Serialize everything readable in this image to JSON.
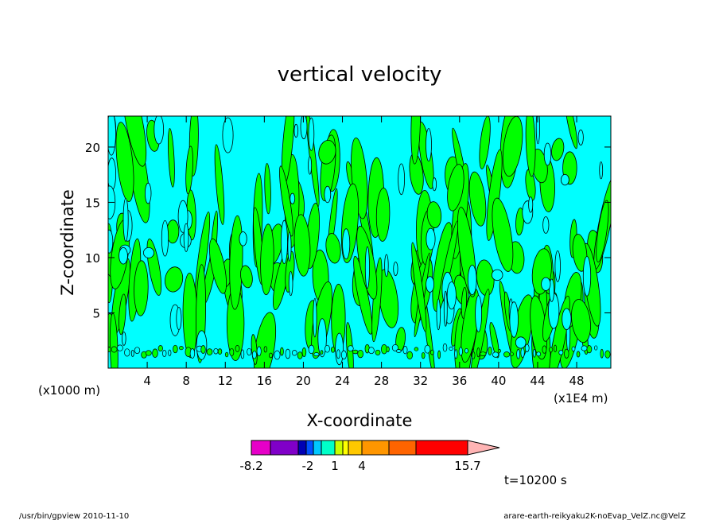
{
  "chart_data": {
    "type": "heatmap",
    "title": "vertical velocity",
    "xlabel": "X-coordinate",
    "ylabel": "Z-coordinate",
    "x_unit": "(x1E4 m)",
    "y_unit": "(x1000 m)",
    "xlim": [
      0,
      51.5
    ],
    "ylim": [
      0,
      22.8
    ],
    "x_ticks": [
      "4",
      "8",
      "12",
      "16",
      "20",
      "24",
      "28",
      "32",
      "36",
      "40",
      "44",
      "48"
    ],
    "y_ticks": [
      "5",
      "10",
      "15",
      "20"
    ],
    "fill_colors": {
      "negative": "#00ffff",
      "positive": "#00ff00"
    },
    "colorbar": {
      "labels": [
        "-8.2",
        "-2",
        "1",
        "4",
        "15.7"
      ],
      "colors": [
        "#e600c8",
        "#8000c8",
        "#0000b4",
        "#0050ff",
        "#00c8ff",
        "#00ffc8",
        "#c8ff00",
        "#ffff00",
        "#ffc800",
        "#ff9600",
        "#ff6400",
        "#ff0000",
        "#ff7878",
        "#ffb4b4"
      ],
      "extend": "max"
    },
    "time_label": "t=10200 s"
  },
  "footer": {
    "left": "/usr/bin/gpview   2010-11-10",
    "right": "arare-earth-reikyaku2K-noEvap_VelZ.nc@VelZ"
  }
}
